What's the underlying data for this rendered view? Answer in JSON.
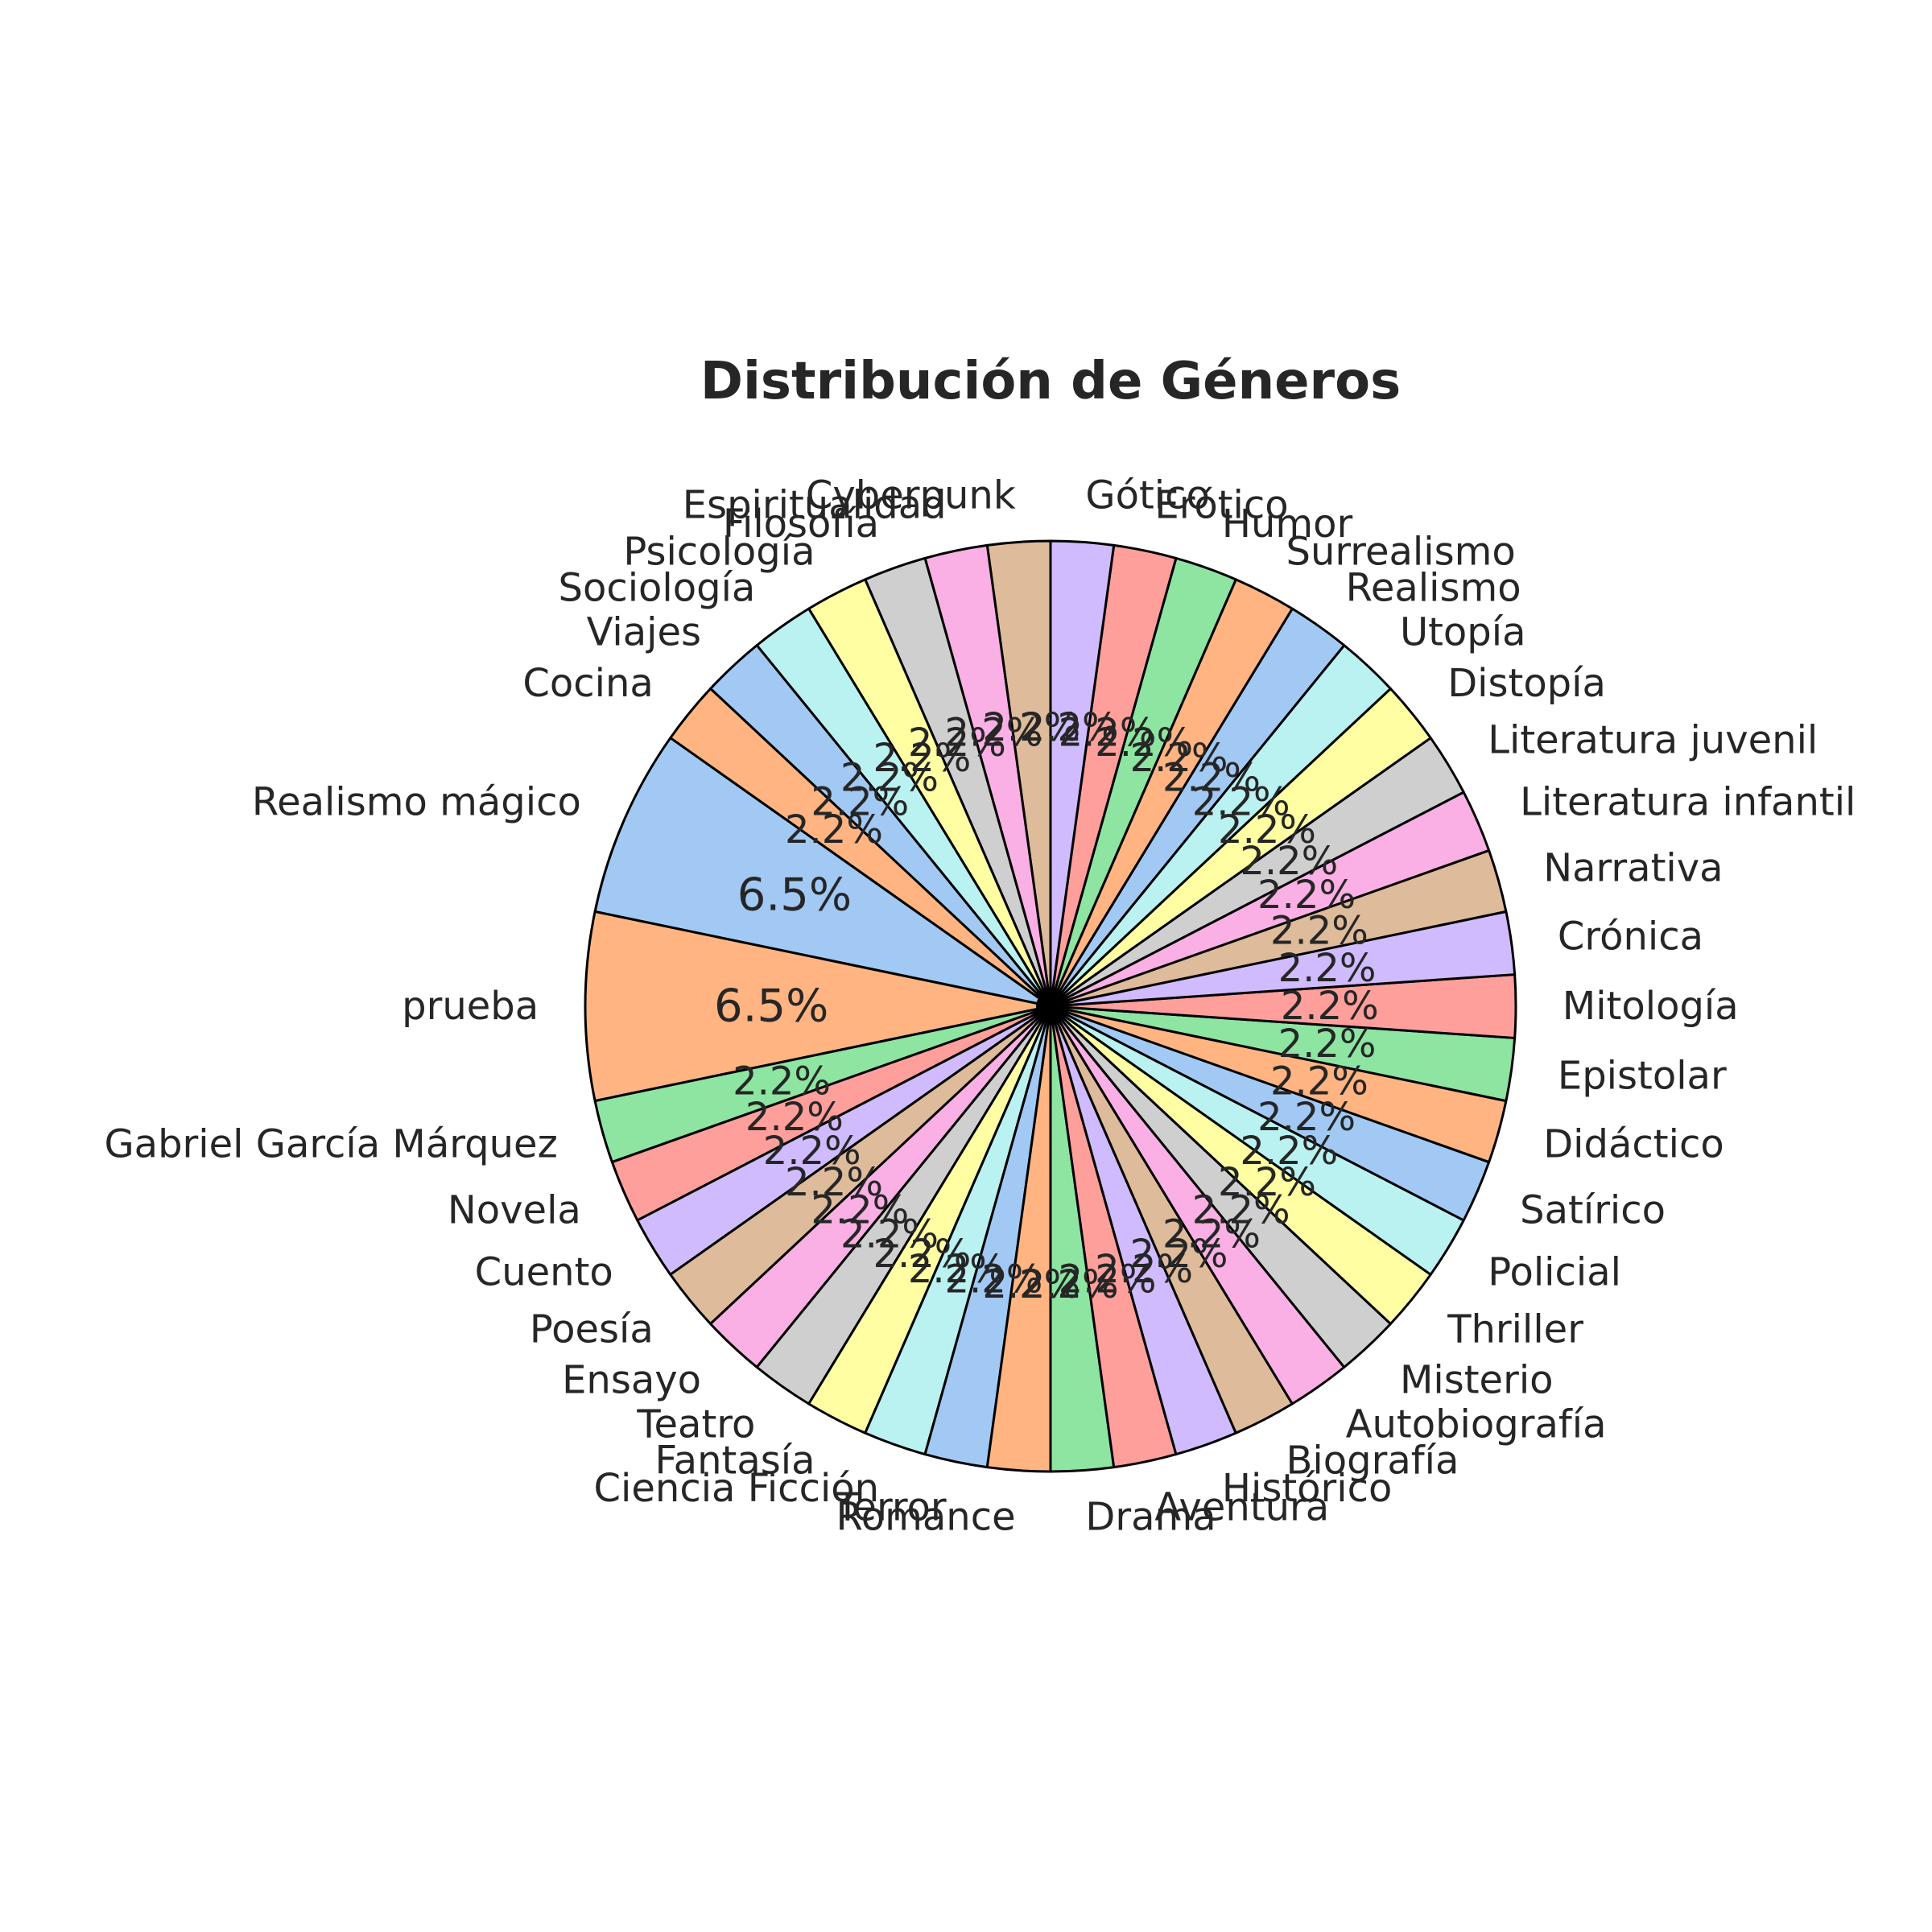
{
  "chart_data": {
    "type": "pie",
    "title": "Distribución de Géneros",
    "start_angle_deg": 90,
    "direction": "counterclockwise",
    "slices": [
      {
        "label": "Cyberpunk",
        "value": 1,
        "pct_label": "2.2%",
        "color": "#debb9b"
      },
      {
        "label": "Espiritualidad",
        "value": 1,
        "pct_label": "2.2%",
        "color": "#fab0e4"
      },
      {
        "label": "Filosofía",
        "value": 1,
        "pct_label": "2.2%",
        "color": "#cfcfcf"
      },
      {
        "label": "Psicología",
        "value": 1,
        "pct_label": "2.2%",
        "color": "#fffea3"
      },
      {
        "label": "Sociología",
        "value": 1,
        "pct_label": "2.2%",
        "color": "#b9f2f0"
      },
      {
        "label": "Viajes",
        "value": 1,
        "pct_label": "2.2%",
        "color": "#a1c9f4"
      },
      {
        "label": "Cocina",
        "value": 1,
        "pct_label": "2.2%",
        "color": "#ffb482"
      },
      {
        "label": "Realismo mágico",
        "value": 3,
        "pct_label": "6.5%",
        "color": "#a1c9f4"
      },
      {
        "label": "prueba",
        "value": 3,
        "pct_label": "6.5%",
        "color": "#ffb482"
      },
      {
        "label": "Gabriel García Márquez",
        "value": 1,
        "pct_label": "2.2%",
        "color": "#8de5a1"
      },
      {
        "label": "Novela",
        "value": 1,
        "pct_label": "2.2%",
        "color": "#ff9f9b"
      },
      {
        "label": "Cuento",
        "value": 1,
        "pct_label": "2.2%",
        "color": "#d0bbff"
      },
      {
        "label": "Poesía",
        "value": 1,
        "pct_label": "2.2%",
        "color": "#debb9b"
      },
      {
        "label": "Ensayo",
        "value": 1,
        "pct_label": "2.2%",
        "color": "#fab0e4"
      },
      {
        "label": "Teatro",
        "value": 1,
        "pct_label": "2.2%",
        "color": "#cfcfcf"
      },
      {
        "label": "Fantasía",
        "value": 1,
        "pct_label": "2.2%",
        "color": "#fffea3"
      },
      {
        "label": "Ciencia Ficción",
        "value": 1,
        "pct_label": "2.2%",
        "color": "#b9f2f0"
      },
      {
        "label": "Terror",
        "value": 1,
        "pct_label": "2.2%",
        "color": "#a1c9f4"
      },
      {
        "label": "Romance",
        "value": 1,
        "pct_label": "2.2%",
        "color": "#ffb482"
      },
      {
        "label": "Drama",
        "value": 1,
        "pct_label": "2.2%",
        "color": "#8de5a1"
      },
      {
        "label": "Aventura",
        "value": 1,
        "pct_label": "2.2%",
        "color": "#ff9f9b"
      },
      {
        "label": "Histórico",
        "value": 1,
        "pct_label": "2.2%",
        "color": "#d0bbff"
      },
      {
        "label": "Biografía",
        "value": 1,
        "pct_label": "2.2%",
        "color": "#debb9b"
      },
      {
        "label": "Autobiografía",
        "value": 1,
        "pct_label": "2.2%",
        "color": "#fab0e4"
      },
      {
        "label": "Misterio",
        "value": 1,
        "pct_label": "2.2%",
        "color": "#cfcfcf"
      },
      {
        "label": "Thriller",
        "value": 1,
        "pct_label": "2.2%",
        "color": "#fffea3"
      },
      {
        "label": "Policial",
        "value": 1,
        "pct_label": "2.2%",
        "color": "#b9f2f0"
      },
      {
        "label": "Satírico",
        "value": 1,
        "pct_label": "2.2%",
        "color": "#a1c9f4"
      },
      {
        "label": "Didáctico",
        "value": 1,
        "pct_label": "2.2%",
        "color": "#ffb482"
      },
      {
        "label": "Epistolar",
        "value": 1,
        "pct_label": "2.2%",
        "color": "#8de5a1"
      },
      {
        "label": "Mitología",
        "value": 1,
        "pct_label": "2.2%",
        "color": "#ff9f9b"
      },
      {
        "label": "Crónica",
        "value": 1,
        "pct_label": "2.2%",
        "color": "#d0bbff"
      },
      {
        "label": "Narrativa",
        "value": 1,
        "pct_label": "2.2%",
        "color": "#debb9b"
      },
      {
        "label": "Literatura infantil",
        "value": 1,
        "pct_label": "2.2%",
        "color": "#fab0e4"
      },
      {
        "label": "Literatura juvenil",
        "value": 1,
        "pct_label": "2.2%",
        "color": "#cfcfcf"
      },
      {
        "label": "Distopía",
        "value": 1,
        "pct_label": "2.2%",
        "color": "#fffea3"
      },
      {
        "label": "Utopía",
        "value": 1,
        "pct_label": "2.2%",
        "color": "#b9f2f0"
      },
      {
        "label": "Realismo",
        "value": 1,
        "pct_label": "2.2%",
        "color": "#a1c9f4"
      },
      {
        "label": "Surrealismo",
        "value": 1,
        "pct_label": "2.2%",
        "color": "#ffb482"
      },
      {
        "label": "Humor",
        "value": 1,
        "pct_label": "2.2%",
        "color": "#8de5a1"
      },
      {
        "label": "Erótico",
        "value": 1,
        "pct_label": "2.2%",
        "color": "#ff9f9b"
      },
      {
        "label": "Gótico",
        "value": 1,
        "pct_label": "2.2%",
        "color": "#d0bbff"
      }
    ]
  }
}
